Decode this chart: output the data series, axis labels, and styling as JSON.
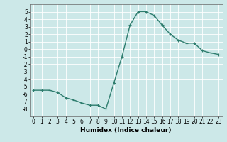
{
  "x": [
    0,
    1,
    2,
    3,
    4,
    5,
    6,
    7,
    8,
    9,
    10,
    11,
    12,
    13,
    14,
    15,
    16,
    17,
    18,
    19,
    20,
    21,
    22,
    23
  ],
  "y": [
    -5.5,
    -5.5,
    -5.5,
    -5.8,
    -6.5,
    -6.8,
    -7.2,
    -7.5,
    -7.5,
    -8.0,
    -4.5,
    -1.0,
    3.2,
    5.0,
    5.0,
    4.5,
    3.2,
    2.0,
    1.2,
    0.8,
    0.8,
    -0.2,
    -0.5,
    -0.7
  ],
  "line_color": "#2e7d6e",
  "marker": "+",
  "marker_size": 3,
  "linewidth": 1.0,
  "xlabel": "Humidex (Indice chaleur)",
  "bg_color": "#cce8e8",
  "grid_color": "#ffffff",
  "ylim": [
    -9,
    6
  ],
  "xlim": [
    -0.5,
    23.5
  ],
  "yticks": [
    5,
    4,
    3,
    2,
    1,
    0,
    -1,
    -2,
    -3,
    -4,
    -5,
    -6,
    -7,
    -8
  ],
  "xticks": [
    0,
    1,
    2,
    3,
    4,
    5,
    6,
    7,
    8,
    9,
    10,
    11,
    12,
    13,
    14,
    15,
    16,
    17,
    18,
    19,
    20,
    21,
    22,
    23
  ],
  "tick_fontsize": 5.5,
  "label_fontsize": 6.5,
  "spine_color": "#666666"
}
